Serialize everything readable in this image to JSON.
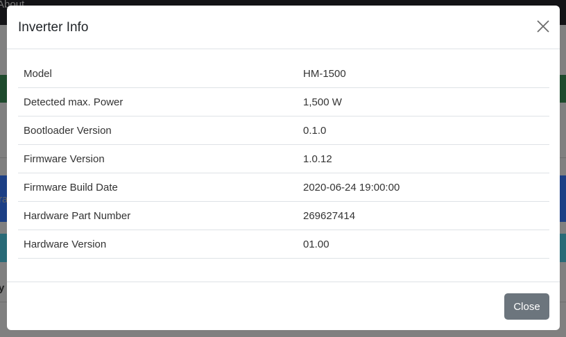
{
  "background": {
    "nav_text": "About",
    "frag_blue": "ra",
    "frag_bottom": "y"
  },
  "modal": {
    "title": "Inverter Info",
    "rows": [
      {
        "label": "Model",
        "value": "HM-1500"
      },
      {
        "label": "Detected max. Power",
        "value": "1,500 W"
      },
      {
        "label": "Bootloader Version",
        "value": "0.1.0"
      },
      {
        "label": "Firmware Version",
        "value": "1.0.12"
      },
      {
        "label": "Firmware Build Date",
        "value": "2020-06-24 19:00:00"
      },
      {
        "label": "Hardware Part Number",
        "value": "269627414"
      },
      {
        "label": "Hardware Version",
        "value": "01.00"
      }
    ],
    "close_label": "Close"
  }
}
